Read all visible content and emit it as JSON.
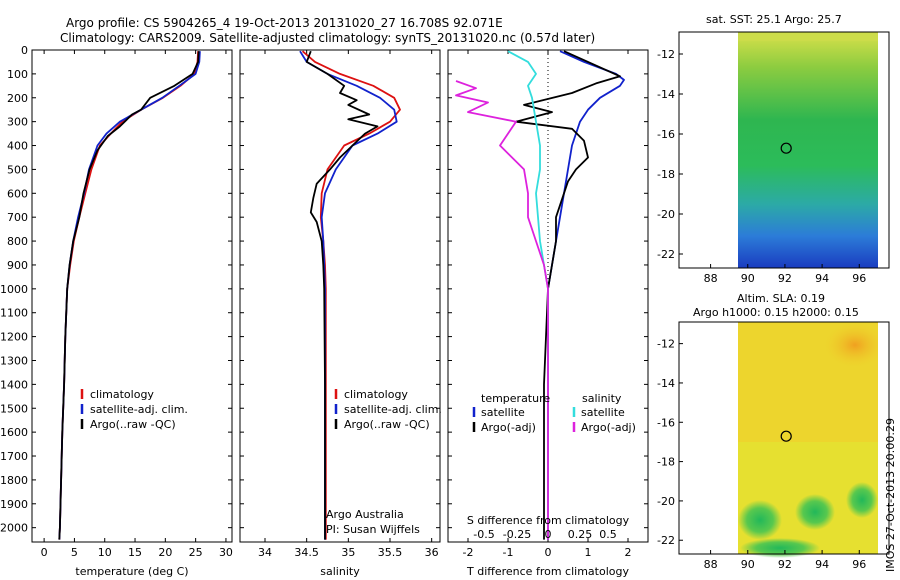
{
  "header": {
    "title_line1": "Argo profile: CS 5904265_4 19-Oct-2013 20131020_27 16.708S 92.071E",
    "title_line2": "Climatology: CARS2009. Satellite-adjusted climatology: synTS_20131020.nc (0.57d later)"
  },
  "stamp": "IMOS 27-Oct-2013 20:00:29",
  "colors": {
    "climatology": "#dd1111",
    "satellite": "#1122cc",
    "argo": "#000000",
    "sat_t": "#1122cc",
    "sat_s": "#33dddd",
    "argo_t": "#000000",
    "argo_s": "#dd22dd"
  },
  "chart_data": [
    {
      "type": "line",
      "panel": "temperature",
      "xlabel": "temperature (deg C)",
      "ylabel": "",
      "xlim": [
        -2,
        31
      ],
      "ylim": [
        2060,
        0
      ],
      "xticks": [
        "0",
        "5",
        "10",
        "15",
        "20",
        "25",
        "30"
      ],
      "yticks": [
        "0",
        "100",
        "200",
        "300",
        "400",
        "500",
        "600",
        "700",
        "800",
        "900",
        "1000",
        "1100",
        "1200",
        "1300",
        "1400",
        "1500",
        "1600",
        "1700",
        "1800",
        "1900",
        "2000"
      ],
      "legend": [
        "climatology",
        "satellite-adj. clim.",
        "Argo(..raw -QC)"
      ],
      "series": [
        {
          "name": "climatology",
          "color": "#dd1111",
          "x": [
            25.4,
            25.3,
            24.8,
            22.5,
            19.6,
            16.0,
            12.9,
            11.0,
            9.2,
            7.8,
            6.8,
            5.8,
            4.9,
            4.3,
            3.8,
            3.5,
            3.3,
            3.0,
            2.8,
            2.6,
            2.5
          ],
          "y": [
            5,
            50,
            100,
            150,
            200,
            250,
            300,
            350,
            400,
            500,
            600,
            700,
            800,
            900,
            1000,
            1200,
            1400,
            1600,
            1800,
            2000,
            2050
          ]
        },
        {
          "name": "satellite-adj. clim.",
          "color": "#1122cc",
          "x": [
            25.7,
            25.6,
            25.0,
            22.3,
            19.5,
            16.0,
            12.5,
            10.3,
            8.8,
            7.4,
            6.6,
            5.6,
            4.8,
            4.2,
            3.8,
            3.5,
            3.3,
            3.0,
            2.8,
            2.6,
            2.5
          ],
          "y": [
            5,
            50,
            100,
            150,
            200,
            250,
            300,
            350,
            400,
            500,
            600,
            700,
            800,
            900,
            1000,
            1200,
            1400,
            1600,
            1800,
            2000,
            2050
          ]
        },
        {
          "name": "Argo(..raw -QC)",
          "color": "#000000",
          "x": [
            25.5,
            25.4,
            24.5,
            21.5,
            17.5,
            16.0,
            14.5,
            12.5,
            10.5,
            8.8,
            7.5,
            6.5,
            5.8,
            4.8,
            4.2,
            3.8,
            3.5,
            3.3,
            3.0,
            2.8,
            2.6,
            2.5
          ],
          "y": [
            5,
            50,
            100,
            150,
            200,
            250,
            270,
            320,
            360,
            420,
            500,
            600,
            700,
            800,
            900,
            1000,
            1200,
            1400,
            1600,
            1800,
            2000,
            2050
          ]
        }
      ]
    },
    {
      "type": "line",
      "panel": "salinity",
      "xlabel": "salinity",
      "xlim": [
        33.7,
        36.1
      ],
      "ylim": [
        2060,
        0
      ],
      "xticks": [
        "34",
        "34.5",
        "35",
        "35.5",
        "36"
      ],
      "legend": [
        "climatology",
        "satellite-adj. clim.",
        "Argo(..raw -QC)"
      ],
      "annotation": [
        "Argo Australia",
        "PI: Susan Wijffels"
      ],
      "series": [
        {
          "name": "climatology",
          "color": "#dd1111",
          "x": [
            34.45,
            34.6,
            34.9,
            35.3,
            35.55,
            35.62,
            35.5,
            35.25,
            34.95,
            34.75,
            34.68,
            34.67,
            34.7,
            34.72,
            34.73,
            34.73,
            34.73,
            34.73,
            34.73,
            34.73
          ],
          "y": [
            5,
            50,
            100,
            150,
            200,
            250,
            300,
            350,
            400,
            500,
            600,
            700,
            800,
            900,
            1000,
            1200,
            1400,
            1600,
            1800,
            2050
          ]
        },
        {
          "name": "satellite-adj. clim.",
          "color": "#1122cc",
          "x": [
            34.42,
            34.5,
            34.75,
            35.1,
            35.38,
            35.55,
            35.58,
            35.35,
            35.05,
            34.85,
            34.72,
            34.68,
            34.7,
            34.71,
            34.72,
            34.72,
            34.72,
            34.72,
            34.72,
            34.72
          ],
          "y": [
            5,
            50,
            100,
            150,
            200,
            250,
            300,
            350,
            400,
            500,
            600,
            700,
            800,
            900,
            1000,
            1200,
            1400,
            1600,
            1800,
            2050
          ]
        },
        {
          "name": "Argo(..raw -QC)",
          "color": "#000000",
          "x": [
            34.55,
            34.5,
            34.75,
            34.95,
            34.9,
            35.1,
            35.0,
            35.25,
            35.0,
            35.35,
            35.2,
            35.05,
            34.9,
            34.78,
            34.62,
            34.58,
            34.55,
            34.62,
            34.68,
            34.7,
            34.71,
            34.72,
            34.72
          ],
          "y": [
            5,
            50,
            100,
            150,
            180,
            210,
            230,
            270,
            290,
            320,
            350,
            400,
            450,
            500,
            560,
            620,
            680,
            720,
            800,
            900,
            1000,
            1400,
            2050
          ]
        }
      ]
    },
    {
      "type": "line",
      "panel": "differences",
      "xlabel": "T difference from climatology",
      "xlabel_top": "S difference from climatology",
      "xlim": [
        -2.5,
        2.5
      ],
      "ylim": [
        2060,
        0
      ],
      "xticks": [
        "-2",
        "-1",
        "0",
        "1",
        "2"
      ],
      "xticks_top": [
        "-0.5",
        "-0.25",
        "0",
        "0.25",
        "0.5"
      ],
      "legend_titles": [
        "temperature",
        "salinity"
      ],
      "legend": [
        "satellite",
        "Argo(-adj)",
        "satellite",
        "Argo(-adj)"
      ],
      "series": [
        {
          "name": "temperature satellite",
          "color": "#1122cc",
          "x": [
            0.3,
            0.9,
            1.7,
            1.9,
            1.8,
            1.3,
            1.0,
            0.8,
            0.6,
            0.5,
            0.4,
            0.3,
            0.2,
            0.1,
            0.0,
            0.0,
            0.0,
            0.0
          ],
          "y": [
            5,
            50,
            100,
            125,
            150,
            200,
            250,
            300,
            400,
            500,
            600,
            700,
            800,
            900,
            1000,
            1400,
            1800,
            2050
          ]
        },
        {
          "name": "temperature Argo(-adj)",
          "color": "#000000",
          "x": [
            0.4,
            1.0,
            1.8,
            1.2,
            0.6,
            -0.6,
            0.1,
            -0.8,
            0.6,
            0.9,
            1.0,
            0.7,
            0.5,
            0.4,
            0.2,
            0.2,
            0.1,
            0.0,
            -0.1,
            -0.1,
            -0.1
          ],
          "y": [
            5,
            50,
            110,
            140,
            180,
            230,
            260,
            300,
            330,
            380,
            450,
            500,
            550,
            600,
            700,
            800,
            900,
            1000,
            1400,
            1800,
            2050
          ]
        },
        {
          "name": "salinity satellite",
          "color": "#33dddd",
          "x": [
            -1.0,
            -0.5,
            -0.3,
            -0.5,
            -0.4,
            -0.3,
            -0.2,
            -0.2,
            -0.3,
            -0.2,
            -0.1,
            0.0,
            0.0,
            0.0
          ],
          "y": [
            5,
            50,
            100,
            150,
            200,
            300,
            400,
            500,
            600,
            800,
            900,
            1000,
            1500,
            2050
          ]
        },
        {
          "name": "salinity Argo(-adj)",
          "color": "#dd22dd",
          "x": [
            -2.3,
            -1.8,
            -2.3,
            -1.5,
            -2.0,
            -0.8,
            -1.2,
            -0.6,
            -0.5,
            -0.5,
            -0.3,
            -0.1,
            0.0,
            0.0,
            0.0
          ],
          "y": [
            130,
            160,
            190,
            220,
            260,
            300,
            400,
            500,
            600,
            700,
            800,
            900,
            1000,
            1500,
            2050
          ]
        }
      ]
    },
    {
      "type": "heatmap",
      "panel": "SST map",
      "title": "sat. SST: 25.1 Argo: 25.7",
      "xlim": [
        86.3,
        97.6
      ],
      "ylim": [
        -22.7,
        -10.9
      ],
      "xticks": [
        "88",
        "90",
        "92",
        "94",
        "96"
      ],
      "yticks": [
        "-12",
        "-14",
        "-16",
        "-18",
        "-20",
        "-22"
      ],
      "marker": [
        92.071,
        -16.708
      ]
    },
    {
      "type": "heatmap",
      "panel": "SLA map",
      "title": "Altim. SLA: 0.19",
      "subtitle": "Argo h1000: 0.15 h2000: 0.15",
      "xlim": [
        86.3,
        97.6
      ],
      "ylim": [
        -22.7,
        -10.9
      ],
      "xticks": [
        "88",
        "90",
        "92",
        "94",
        "96"
      ],
      "yticks": [
        "-12",
        "-14",
        "-16",
        "-18",
        "-20",
        "-22"
      ],
      "marker": [
        92.071,
        -16.708
      ]
    }
  ]
}
